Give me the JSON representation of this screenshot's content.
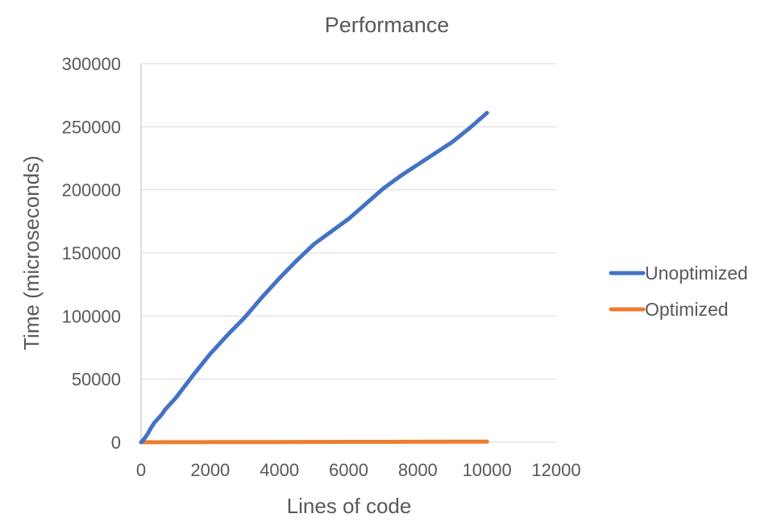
{
  "chart_data": {
    "type": "line",
    "title": "Performance",
    "xlabel": "Lines of code",
    "ylabel": "Time (microseconds)",
    "xlim": [
      0,
      12000
    ],
    "ylim": [
      0,
      300000
    ],
    "xticks": [
      0,
      2000,
      4000,
      6000,
      8000,
      10000,
      12000
    ],
    "yticks": [
      0,
      50000,
      100000,
      150000,
      200000,
      250000,
      300000
    ],
    "grid": "horizontal",
    "legend_position": "right",
    "series": [
      {
        "name": "Unoptimized",
        "color": "#4472C4",
        "x": [
          0,
          100,
          200,
          300,
          400,
          500,
          600,
          700,
          800,
          1000,
          1500,
          2000,
          2500,
          3000,
          3500,
          4000,
          4500,
          5000,
          5500,
          6000,
          6500,
          7000,
          7500,
          8000,
          8500,
          9000,
          9500,
          10000
        ],
        "y": [
          0,
          3000,
          7000,
          12000,
          16000,
          19000,
          22000,
          26000,
          29000,
          35000,
          53000,
          70000,
          85000,
          99000,
          115000,
          130000,
          144000,
          157000,
          167000,
          177000,
          189000,
          201000,
          211000,
          220000,
          229000,
          238000,
          249000,
          261000
        ]
      },
      {
        "name": "Optimized",
        "color": "#ED7D31",
        "x": [
          0,
          1000,
          2000,
          3000,
          4000,
          5000,
          6000,
          7000,
          8000,
          9000,
          10000
        ],
        "y": [
          0,
          50,
          100,
          150,
          200,
          250,
          300,
          350,
          400,
          450,
          500
        ]
      }
    ]
  }
}
